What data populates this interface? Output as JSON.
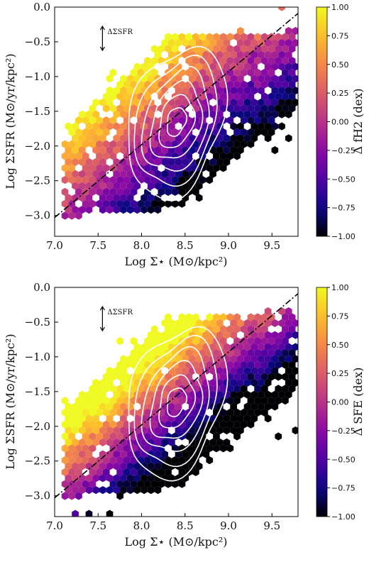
{
  "chart_data": [
    {
      "type": "hexbin",
      "panel": "top",
      "xlabel": "Log Σ⋆ (M⊙/kpc²)",
      "ylabel": "Log ΣSFR (M⊙/yr/kpc²)",
      "colorbar_label": "Δ fH2 (dex)",
      "xlim": [
        7.0,
        9.8
      ],
      "ylim": [
        -3.3,
        0.0
      ],
      "x_ticks": [
        "7.0",
        "7.5",
        "8.0",
        "8.5",
        "9.0",
        "9.5"
      ],
      "x_tick_values": [
        7.0,
        7.5,
        8.0,
        8.5,
        9.0,
        9.5
      ],
      "y_ticks": [
        "0.0",
        "−0.5",
        "−1.0",
        "−1.5",
        "−2.0",
        "−2.5",
        "−3.0"
      ],
      "y_tick_values": [
        0.0,
        -0.5,
        -1.0,
        -1.5,
        -2.0,
        -2.5,
        -3.0
      ],
      "clim": [
        -1.0,
        1.0
      ],
      "colorbar_ticks": [
        "1.00",
        "0.75",
        "0.50",
        "0.25",
        "0.00",
        "−0.25",
        "−0.50",
        "−0.75",
        "−1.00"
      ],
      "colorbar_tick_values": [
        1.0,
        0.75,
        0.5,
        0.25,
        0.0,
        -0.25,
        -0.5,
        -0.75,
        -1.0
      ],
      "annotation": "ΔΣSFR",
      "annotation_pos": [
        7.55,
        -0.45
      ],
      "ms_line": {
        "slope": 1.05,
        "intercept": -10.38,
        "style": "dash-dot"
      },
      "contour_center": [
        8.4,
        -1.65
      ],
      "contour_levels": 6,
      "colormap": "plasma"
    },
    {
      "type": "hexbin",
      "panel": "bottom",
      "xlabel": "Log Σ⋆ (M⊙/kpc²)",
      "ylabel": "Log ΣSFR (M⊙/yr/kpc²)",
      "colorbar_label": "Δ SFE (dex)",
      "xlim": [
        7.0,
        9.8
      ],
      "ylim": [
        -3.3,
        0.0
      ],
      "x_ticks": [
        "7.0",
        "7.5",
        "8.0",
        "8.5",
        "9.0",
        "9.5"
      ],
      "x_tick_values": [
        7.0,
        7.5,
        8.0,
        8.5,
        9.0,
        9.5
      ],
      "y_ticks": [
        "0.0",
        "−0.5",
        "−1.0",
        "−1.5",
        "−2.0",
        "−2.5",
        "−3.0"
      ],
      "y_tick_values": [
        0.0,
        -0.5,
        -1.0,
        -1.5,
        -2.0,
        -2.5,
        -3.0
      ],
      "clim": [
        -1.0,
        1.0
      ],
      "colorbar_ticks": [
        "1.00",
        "0.75",
        "0.50",
        "0.25",
        "0.00",
        "−0.25",
        "−0.50",
        "−0.75",
        "−1.00"
      ],
      "colorbar_tick_values": [
        1.0,
        0.75,
        0.5,
        0.25,
        0.0,
        -0.25,
        -0.5,
        -0.75,
        -1.0
      ],
      "annotation": "ΔΣSFR",
      "annotation_pos": [
        7.55,
        -0.45
      ],
      "ms_line": {
        "slope": 1.05,
        "intercept": -10.38,
        "style": "dash-dot"
      },
      "contour_center": [
        8.4,
        -1.65
      ],
      "contour_levels": 6,
      "colormap": "plasma"
    }
  ],
  "colors": {
    "plasma_stops": [
      "#0d0887",
      "#5302a3",
      "#8b0aa5",
      "#b83289",
      "#db5c68",
      "#f48849",
      "#febd2a",
      "#f0f921"
    ],
    "dark_end": "#000004",
    "contour": "#ffffff",
    "line": "#000000"
  }
}
